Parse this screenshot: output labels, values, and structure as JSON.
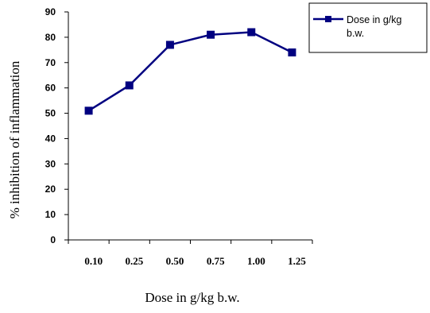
{
  "chart_data": {
    "type": "line",
    "title": "",
    "xlabel": "Dose in g/kg b.w.",
    "ylabel": "% inhibition of inflammation",
    "categories": [
      "0.10",
      "0.25",
      "0.50",
      "0.75",
      "1.00",
      "1.25"
    ],
    "yticks": [
      "0",
      "10",
      "20",
      "30",
      "40",
      "50",
      "60",
      "70",
      "80",
      "90"
    ],
    "ylim": [
      0,
      90
    ],
    "grid": false,
    "legend": {
      "position": "top-right",
      "lines": [
        "Dose in g/kg",
        "b.w."
      ]
    },
    "series": [
      {
        "name": "Dose in g/kg b.w.",
        "values": [
          51,
          61,
          77,
          81,
          82,
          74
        ],
        "color": "#000080"
      }
    ]
  }
}
